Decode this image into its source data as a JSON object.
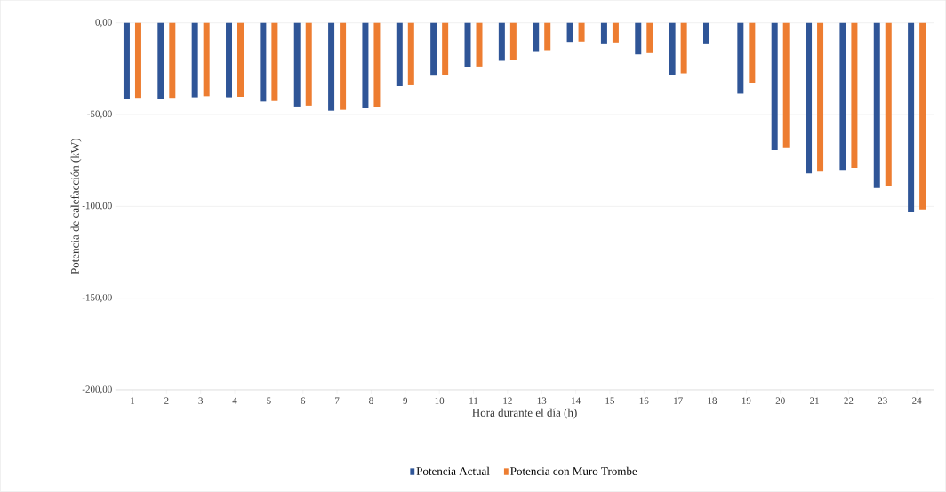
{
  "chart_data": {
    "type": "bar",
    "xlabel": "Hora durante el día (h)",
    "ylabel": "Potencia de calefacción (kW)",
    "categories": [
      "1",
      "2",
      "3",
      "4",
      "5",
      "6",
      "7",
      "8",
      "9",
      "10",
      "11",
      "12",
      "13",
      "14",
      "15",
      "16",
      "17",
      "18",
      "19",
      "20",
      "21",
      "22",
      "23",
      "24"
    ],
    "series": [
      {
        "name": "Potencia Actual",
        "color": "#2f5597",
        "values": [
          -41.3,
          -41.3,
          -40.6,
          -40.6,
          -42.9,
          -45.6,
          -47.9,
          -46.6,
          -34.5,
          -28.8,
          -24.3,
          -20.7,
          -15.4,
          -10.4,
          -11.2,
          -17.2,
          -28.2,
          -11.2,
          -38.6,
          -69.3,
          -82.1,
          -80.1,
          -90.0,
          -103.2
        ]
      },
      {
        "name": "Potencia con Muro Trombe",
        "color": "#ed7d31",
        "values": [
          -40.9,
          -40.9,
          -40.0,
          -40.3,
          -42.6,
          -45.1,
          -47.4,
          -46.0,
          -34.0,
          -28.2,
          -23.8,
          -20.1,
          -14.9,
          -10.2,
          -10.7,
          -16.5,
          -27.5,
          null,
          -33.0,
          -68.3,
          -81.1,
          -79.0,
          -88.7,
          -101.6
        ]
      }
    ],
    "ylim": [
      -200,
      0
    ],
    "yticks": [
      {
        "value": -200,
        "label": "-200,00"
      },
      {
        "value": -150,
        "label": "-150,00"
      },
      {
        "value": -100,
        "label": "-100,00"
      },
      {
        "value": -50,
        "label": "-50,00"
      },
      {
        "value": 0,
        "label": "0,00"
      }
    ],
    "grid": "y",
    "legend": "bottom"
  }
}
